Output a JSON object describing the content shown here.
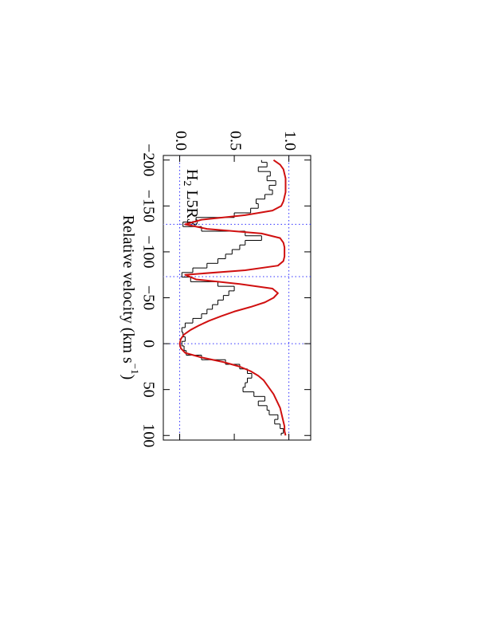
{
  "chart_data": {
    "type": "line",
    "label": {
      "species": "H",
      "subscript": "2",
      "transition": "L5R3"
    },
    "x_label": {
      "text": "Relative velocity (km s",
      "superscript": "−1",
      "close": ")"
    },
    "xlim": [
      -205,
      105
    ],
    "xticks": [
      {
        "value": -200,
        "label": "−200"
      },
      {
        "value": -150,
        "label": "−150"
      },
      {
        "value": -100,
        "label": "−100"
      },
      {
        "value": -50,
        "label": "−50"
      },
      0,
      50,
      100
    ],
    "ylim": [
      -0.15,
      1.2
    ],
    "yticks": [
      {
        "value": 0,
        "label": "0.0"
      },
      0.5,
      {
        "value": 1,
        "label": "1.0"
      }
    ],
    "vlines": [
      -130,
      -73,
      0
    ],
    "hlines": [
      0,
      1
    ],
    "guide_color": "#3030ff",
    "x": [
      -200,
      -195,
      -190,
      -185,
      -180,
      -175,
      -170,
      -165,
      -160,
      -155,
      -150,
      -145,
      -140,
      -135,
      -130,
      -125,
      -120,
      -115,
      -110,
      -105,
      -100,
      -95,
      -90,
      -85,
      -80,
      -75,
      -70,
      -65,
      -60,
      -55,
      -50,
      -45,
      -40,
      -35,
      -30,
      -25,
      -20,
      -15,
      -10,
      -5,
      0,
      5,
      10,
      15,
      20,
      25,
      30,
      35,
      40,
      45,
      50,
      55,
      60,
      65,
      70,
      75,
      80,
      85,
      90,
      95,
      100
    ],
    "series": [
      {
        "style": "steps",
        "color": "#000000",
        "values": [
          0.75,
          0.8,
          0.72,
          0.83,
          0.8,
          0.88,
          0.82,
          0.85,
          0.78,
          0.7,
          0.72,
          0.65,
          0.5,
          0.15,
          0.03,
          0.2,
          0.6,
          0.75,
          0.6,
          0.55,
          0.48,
          0.42,
          0.35,
          0.25,
          0.12,
          0.02,
          0.1,
          0.35,
          0.5,
          0.45,
          0.4,
          0.35,
          0.3,
          0.25,
          0.2,
          0.12,
          0.05,
          0.02,
          0.03,
          0.05,
          0.02,
          0.04,
          0.06,
          0.2,
          0.42,
          0.55,
          0.62,
          0.66,
          0.62,
          0.6,
          0.58,
          0.68,
          0.78,
          0.72,
          0.8,
          0.82,
          0.9,
          0.87,
          0.92,
          0.95,
          0.93
        ]
      },
      {
        "style": "smooth",
        "color": "#d01010",
        "values": [
          0.86,
          0.92,
          0.95,
          0.96,
          0.97,
          0.97,
          0.97,
          0.97,
          0.96,
          0.95,
          0.93,
          0.85,
          0.6,
          0.2,
          0.05,
          0.25,
          0.75,
          0.92,
          0.95,
          0.96,
          0.96,
          0.96,
          0.95,
          0.9,
          0.6,
          0.05,
          0.15,
          0.55,
          0.85,
          0.9,
          0.86,
          0.78,
          0.65,
          0.5,
          0.38,
          0.27,
          0.18,
          0.1,
          0.04,
          0.01,
          0.0,
          0.01,
          0.05,
          0.2,
          0.4,
          0.55,
          0.65,
          0.72,
          0.77,
          0.8,
          0.83,
          0.86,
          0.88,
          0.9,
          0.92,
          0.93,
          0.94,
          0.95,
          0.96,
          0.96,
          0.97
        ]
      }
    ]
  }
}
